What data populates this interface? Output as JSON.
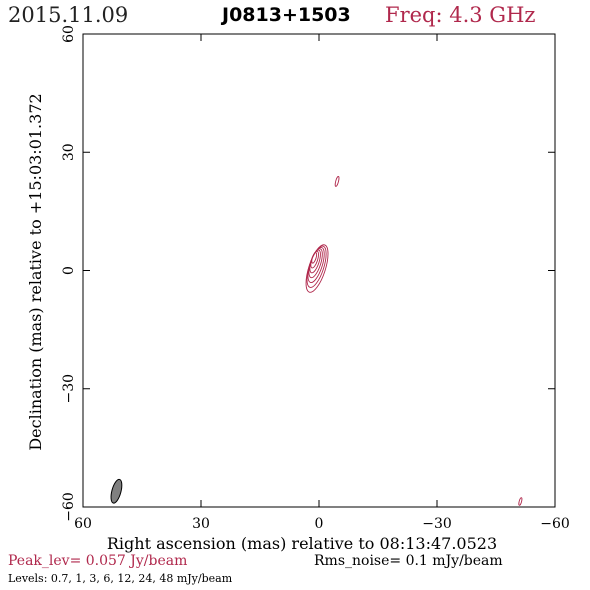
{
  "header": {
    "date": "2015.11.09",
    "source": "J0813+1503",
    "frequency": "Freq: 4.3 GHz"
  },
  "chart_data": {
    "type": "contour",
    "xlabel": "Right ascension (mas) relative to 08:13:47.0523",
    "ylabel": "Declination (mas) relative to +15:03:01.372",
    "xlim": [
      60,
      -60
    ],
    "ylim": [
      -60,
      60
    ],
    "xticks": [
      60,
      30,
      0,
      -30,
      -60
    ],
    "yticks": [
      60,
      30,
      0,
      -30,
      -60
    ],
    "xtick_labels": [
      "60",
      "30",
      "0",
      "−30",
      "−60"
    ],
    "ytick_labels": [
      "60",
      "30",
      "0",
      "−30",
      "−60"
    ],
    "contour_color": "#b0284c",
    "main_component": {
      "x": 0.5,
      "y": 0.5,
      "semi_major": 6.3,
      "semi_minor": 2.1,
      "pa_deg": 18,
      "n_contours": 7
    },
    "minor_components": [
      {
        "x": -4.6,
        "y": 22.6,
        "semi_major": 1.3,
        "semi_minor": 0.35,
        "pa_deg": 15
      },
      {
        "x": -51.2,
        "y": -58.6,
        "semi_major": 1.0,
        "semi_minor": 0.3,
        "pa_deg": 15
      }
    ],
    "beam": {
      "x": 51.5,
      "y": -56.0,
      "major": 6.2,
      "minor": 2.3,
      "pa_deg": 15,
      "fill": "#808080"
    }
  },
  "footer": {
    "peak": "Peak_lev=  0.057 Jy/beam",
    "rms": "Rms_noise=   0.1 mJy/beam",
    "levels": "Levels: 0.7,    1,    3,    6,   12,   24,   48 mJy/beam"
  }
}
